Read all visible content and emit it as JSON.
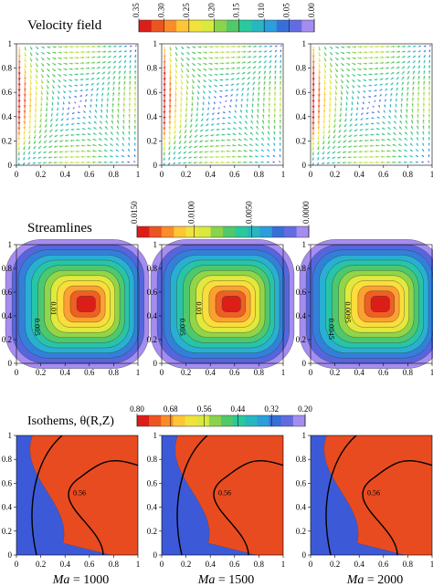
{
  "panels": {
    "velocity": {
      "title": "Velocity field",
      "colorbar_ticks": [
        "0.35",
        "0.30",
        "0.25",
        "0.20",
        "0.15",
        "0.10",
        "0.05",
        "0.00"
      ],
      "y_ticks": [
        "0",
        "0.2",
        "0.4",
        "0.6",
        "0.8",
        "1"
      ],
      "x_ticks": [
        "0",
        "0.2",
        "0.4",
        "0.6",
        "0.8",
        "1"
      ]
    },
    "streamlines": {
      "title": "Streamlines",
      "colorbar_ticks": [
        "0.0150",
        "0.0100",
        "0.0050",
        "0.0000"
      ],
      "y_ticks": [
        "0",
        "0.2",
        "0.4",
        "0.6",
        "0.8",
        "1"
      ],
      "x_ticks": [
        "0",
        "0.2",
        "0.4",
        "0.6",
        "0.8",
        "1"
      ],
      "contour_labels": [
        [
          "0.005",
          "0.01"
        ],
        [
          "0.005",
          "0.01"
        ],
        [
          "0.0045",
          "0.0095"
        ]
      ]
    },
    "isotherms": {
      "title": "Isothems, θ(R,Z)",
      "colorbar_ticks": [
        "0.80",
        "0.68",
        "0.56",
        "0.44",
        "0.32",
        "0.20"
      ],
      "y_ticks": [
        "0",
        "0.2",
        "0.4",
        "0.6",
        "0.8",
        "1"
      ],
      "x_ticks": [
        "0",
        "0.2",
        "0.4",
        "0.6",
        "0.8",
        "1"
      ],
      "contour_label": "0.56"
    }
  },
  "cases": [
    "Ma = 1000",
    "Ma = 1500",
    "Ma = 2000"
  ],
  "colors": {
    "jet_hot": "#e0201a",
    "jet_cool": "#9a82e8"
  }
}
